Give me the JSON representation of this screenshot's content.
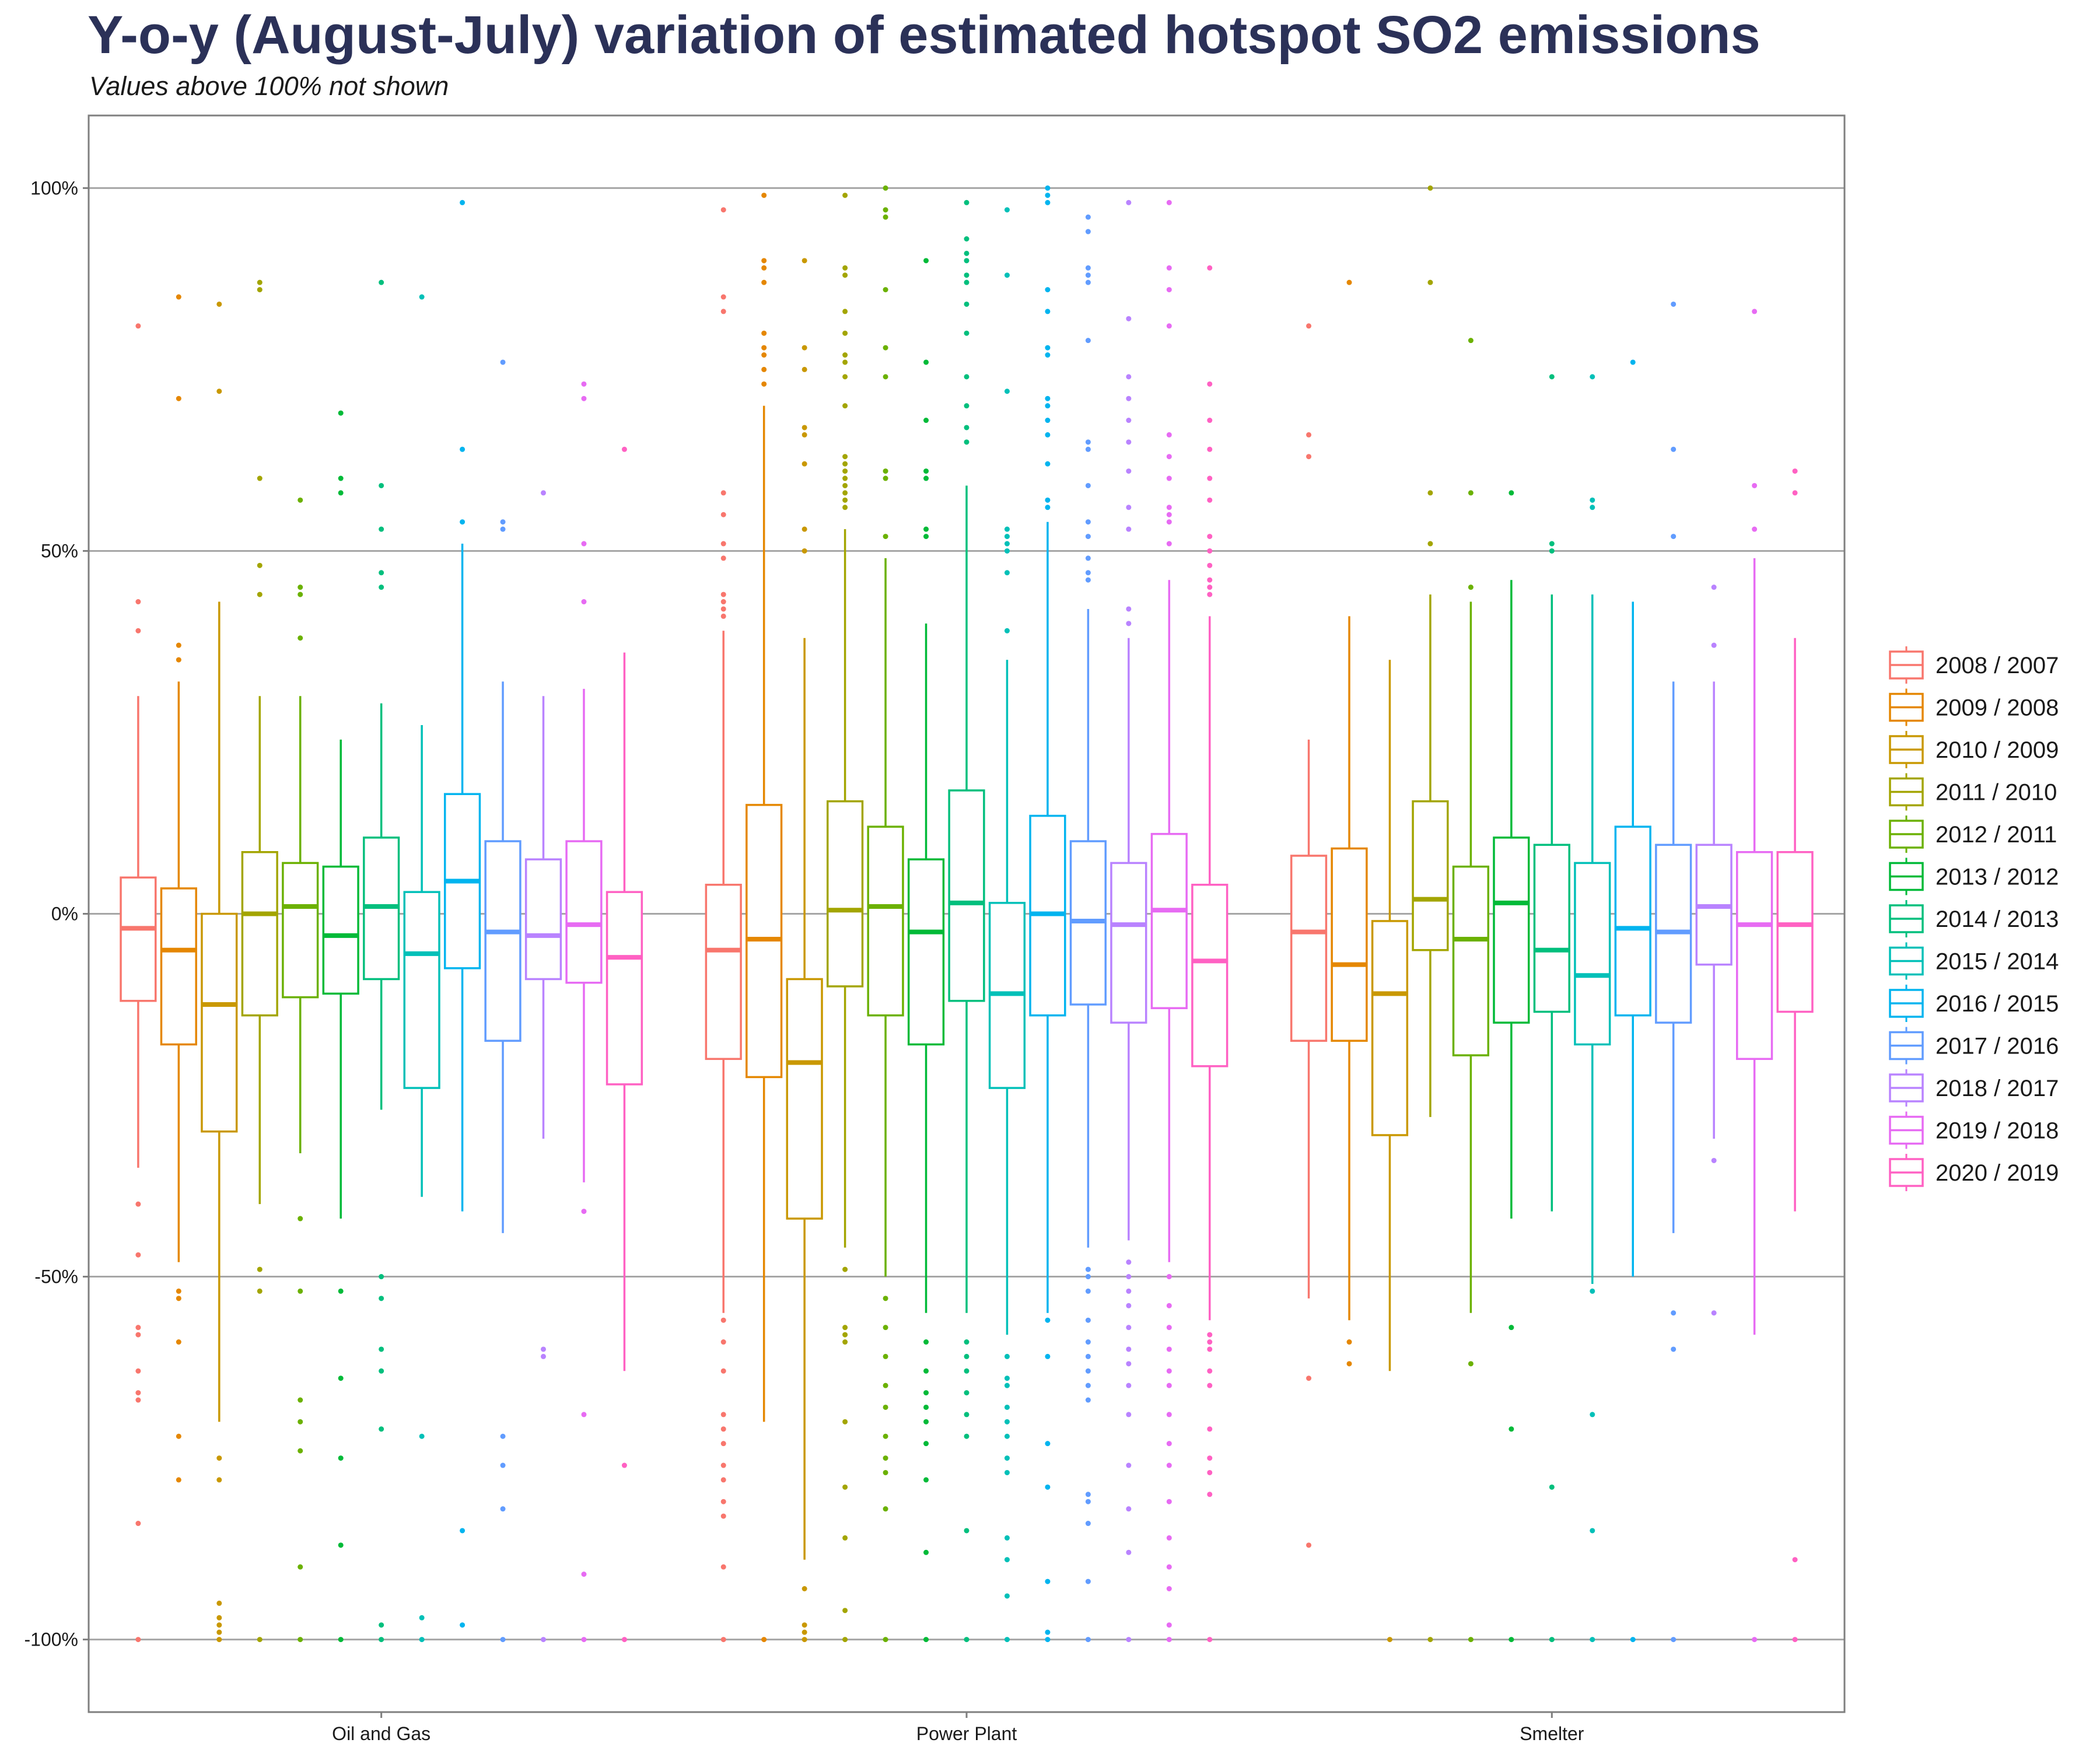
{
  "chart_data": {
    "type": "boxplot",
    "title": "Y-o-y (August-July) variation of estimated hotspot SO2 emissions",
    "subtitle": "Values above 100% not shown",
    "xlabel": "",
    "ylabel": "",
    "categories": [
      "Oil and Gas",
      "Power Plant",
      "Smelter"
    ],
    "y_ticks": [
      100,
      50,
      0,
      -50,
      -100
    ],
    "y_tick_labels": [
      "100%",
      "50%",
      "0%",
      "-50%",
      "-100%"
    ],
    "ylim": [
      -110,
      110
    ],
    "grid": "horizontal major lines",
    "legend_position": "right",
    "series": [
      {
        "name": "2008 / 2007",
        "color": "#F8766D",
        "boxes": [
          {
            "q1": -12,
            "median": -2,
            "q3": 5,
            "wlo": -35,
            "whi": 30,
            "outliers": [
              81,
              43,
              39,
              -40,
              -47,
              -57,
              -58,
              -63,
              -66,
              -67,
              -84,
              -100
            ]
          },
          {
            "q1": -20,
            "median": -5,
            "q3": 4,
            "wlo": -55,
            "whi": 39,
            "outliers": [
              97,
              85,
              83,
              58,
              55,
              51,
              49,
              44,
              43,
              42,
              41,
              -56,
              -59,
              -63,
              -69,
              -71,
              -73,
              -76,
              -78,
              -81,
              -83,
              -90,
              -100
            ]
          },
          {
            "q1": -17.5,
            "median": -2.5,
            "q3": 8,
            "wlo": -53,
            "whi": 24,
            "outliers": [
              81,
              66,
              63,
              -64,
              -87
            ]
          }
        ]
      },
      {
        "name": "2009 / 2008",
        "color": "#E58700",
        "boxes": [
          {
            "q1": -18,
            "median": -5,
            "q3": 3.5,
            "wlo": -48,
            "whi": 32,
            "outliers": [
              85,
              71,
              37,
              35,
              -52,
              -53,
              -59,
              -72,
              -78
            ]
          },
          {
            "q1": -22.5,
            "median": -3.5,
            "q3": 15,
            "wlo": -70,
            "whi": 70,
            "outliers": [
              99,
              90,
              89,
              87,
              80,
              78,
              77,
              75,
              73,
              -100
            ]
          },
          {
            "q1": -17.5,
            "median": -7,
            "q3": 9,
            "wlo": -56,
            "whi": 41,
            "outliers": [
              87,
              -59,
              -62
            ]
          }
        ]
      },
      {
        "name": "2010 / 2009",
        "color": "#C99800",
        "boxes": [
          {
            "q1": -30,
            "median": -12.5,
            "q3": 0,
            "wlo": -70,
            "whi": 43,
            "outliers": [
              84,
              72,
              -75,
              -78,
              -95,
              -97,
              -98,
              -99,
              -100
            ]
          },
          {
            "q1": -42,
            "median": -20.5,
            "q3": -9,
            "wlo": -89,
            "whi": 38,
            "outliers": [
              90,
              78,
              75,
              67,
              66,
              62,
              53,
              50,
              -93,
              -98,
              -99,
              -100
            ]
          },
          {
            "q1": -30.5,
            "median": -11,
            "q3": -1,
            "wlo": -63,
            "whi": 35,
            "outliers": [
              -100
            ]
          }
        ]
      },
      {
        "name": "2011 / 2010",
        "color": "#A3A500",
        "boxes": [
          {
            "q1": -14,
            "median": 0,
            "q3": 8.5,
            "wlo": -40,
            "whi": 30,
            "outliers": [
              87,
              86,
              60,
              48,
              44,
              -49,
              -52,
              -100
            ]
          },
          {
            "q1": -10,
            "median": 0.5,
            "q3": 15.5,
            "wlo": -46,
            "whi": 53,
            "outliers": [
              99,
              89,
              88,
              83,
              80,
              77,
              76,
              74,
              70,
              63,
              62,
              61,
              60,
              59,
              58,
              57,
              56,
              -49,
              -57,
              -58,
              -59,
              -70,
              -79,
              -86,
              -96,
              -100
            ]
          },
          {
            "q1": -5,
            "median": 2,
            "q3": 15.5,
            "wlo": -28,
            "whi": 44,
            "outliers": [
              100,
              87,
              58,
              51,
              -100
            ]
          }
        ]
      },
      {
        "name": "2012 / 2011",
        "color": "#6BB100",
        "boxes": [
          {
            "q1": -11.5,
            "median": 1,
            "q3": 7,
            "wlo": -33,
            "whi": 30,
            "outliers": [
              57,
              45,
              44,
              38,
              -42,
              -52,
              -67,
              -70,
              -74,
              -90,
              -100
            ]
          },
          {
            "q1": -14,
            "median": 1,
            "q3": 12,
            "wlo": -50,
            "whi": 49,
            "outliers": [
              100,
              97,
              96,
              86,
              78,
              74,
              61,
              60,
              52,
              -53,
              -57,
              -61,
              -65,
              -68,
              -72,
              -75,
              -77,
              -82,
              -100
            ]
          },
          {
            "q1": -19.5,
            "median": -3.5,
            "q3": 6.5,
            "wlo": -55,
            "whi": 43,
            "outliers": [
              79,
              58,
              45,
              -62,
              -100
            ]
          }
        ]
      },
      {
        "name": "2013 / 2012",
        "color": "#00BA38",
        "boxes": [
          {
            "q1": -11,
            "median": -3,
            "q3": 6.5,
            "wlo": -42,
            "whi": 24,
            "outliers": [
              69,
              60,
              58,
              -52,
              -64,
              -75,
              -87,
              -100
            ]
          },
          {
            "q1": -18,
            "median": -2.5,
            "q3": 7.5,
            "wlo": -55,
            "whi": 40,
            "outliers": [
              90,
              76,
              68,
              61,
              60,
              53,
              52,
              -59,
              -63,
              -66,
              -68,
              -70,
              -73,
              -78,
              -88,
              -100
            ]
          },
          {
            "q1": -15,
            "median": 1.5,
            "q3": 10.5,
            "wlo": -42,
            "whi": 46,
            "outliers": [
              58,
              -57,
              -71,
              -100
            ]
          }
        ]
      },
      {
        "name": "2014 / 2013",
        "color": "#00BF7D",
        "boxes": [
          {
            "q1": -9,
            "median": 1,
            "q3": 10.5,
            "wlo": -27,
            "whi": 29,
            "outliers": [
              87,
              59,
              53,
              47,
              45,
              -50,
              -53,
              -60,
              -63,
              -71,
              -98,
              -100
            ]
          },
          {
            "q1": -12,
            "median": 1.5,
            "q3": 17,
            "wlo": -55,
            "whi": 59,
            "outliers": [
              98,
              93,
              91,
              90,
              88,
              87,
              84,
              80,
              74,
              70,
              67,
              65,
              -59,
              -61,
              -63,
              -66,
              -69,
              -72,
              -85,
              -100
            ]
          },
          {
            "q1": -13.5,
            "median": -5,
            "q3": 9.5,
            "wlo": -41,
            "whi": 44,
            "outliers": [
              74,
              51,
              50,
              -79,
              -100
            ]
          }
        ]
      },
      {
        "name": "2015 / 2014",
        "color": "#00C0B8",
        "boxes": [
          {
            "q1": -24,
            "median": -5.5,
            "q3": 3,
            "wlo": -39,
            "whi": 26,
            "outliers": [
              85,
              -72,
              -97,
              -100
            ]
          },
          {
            "q1": -24,
            "median": -11,
            "q3": 1.5,
            "wlo": -58,
            "whi": 35,
            "outliers": [
              97,
              88,
              72,
              53,
              52,
              51,
              50,
              47,
              39,
              -61,
              -64,
              -65,
              -68,
              -70,
              -72,
              -75,
              -77,
              -86,
              -89,
              -94,
              -100
            ]
          },
          {
            "q1": -18,
            "median": -8.5,
            "q3": 7,
            "wlo": -51,
            "whi": 44,
            "outliers": [
              74,
              57,
              56,
              -52,
              -69,
              -85,
              -100
            ]
          }
        ]
      },
      {
        "name": "2016 / 2015",
        "color": "#00B4EF",
        "boxes": [
          {
            "q1": -7.5,
            "median": 4.5,
            "q3": 16.5,
            "wlo": -41,
            "whi": 51,
            "outliers": [
              98,
              64,
              54,
              -85,
              -98
            ]
          },
          {
            "q1": -14,
            "median": 0,
            "q3": 13.5,
            "wlo": -55,
            "whi": 54,
            "outliers": [
              100,
              99,
              98,
              86,
              83,
              78,
              77,
              71,
              70,
              68,
              66,
              62,
              57,
              56,
              -56,
              -61,
              -73,
              -79,
              -92,
              -99,
              -100
            ]
          },
          {
            "q1": -14,
            "median": -2,
            "q3": 12,
            "wlo": -50,
            "whi": 43,
            "outliers": [
              76,
              -100
            ]
          }
        ]
      },
      {
        "name": "2017 / 2016",
        "color": "#619CFF",
        "boxes": [
          {
            "q1": -17.5,
            "median": -2.5,
            "q3": 10,
            "wlo": -44,
            "whi": 32,
            "outliers": [
              76,
              54,
              53,
              -72,
              -76,
              -82,
              -100
            ]
          },
          {
            "q1": -12.5,
            "median": -1,
            "q3": 10,
            "wlo": -46,
            "whi": 42,
            "outliers": [
              96,
              94,
              89,
              88,
              87,
              79,
              65,
              64,
              59,
              54,
              52,
              49,
              47,
              46,
              -49,
              -50,
              -52,
              -56,
              -59,
              -61,
              -63,
              -65,
              -67,
              -80,
              -81,
              -84,
              -92,
              -100
            ]
          },
          {
            "q1": -15,
            "median": -2.5,
            "q3": 9.5,
            "wlo": -44,
            "whi": 32,
            "outliers": [
              84,
              64,
              52,
              -55,
              -60,
              -100
            ]
          }
        ]
      },
      {
        "name": "2018 / 2017",
        "color": "#B983FF",
        "boxes": [
          {
            "q1": -9,
            "median": -3,
            "q3": 7.5,
            "wlo": -31,
            "whi": 30,
            "outliers": [
              58,
              -60,
              -61,
              -100
            ]
          },
          {
            "q1": -15,
            "median": -1.5,
            "q3": 7,
            "wlo": -45,
            "whi": 38,
            "outliers": [
              98,
              82,
              74,
              71,
              68,
              65,
              61,
              56,
              53,
              42,
              40,
              -48,
              -50,
              -52,
              -54,
              -57,
              -60,
              -62,
              -65,
              -69,
              -76,
              -82,
              -88,
              -100
            ]
          },
          {
            "q1": -7,
            "median": 1,
            "q3": 9.5,
            "wlo": -31,
            "whi": 32,
            "outliers": [
              45,
              37,
              -34,
              -55
            ]
          }
        ]
      },
      {
        "name": "2019 / 2018",
        "color": "#E76BF3",
        "boxes": [
          {
            "q1": -9.5,
            "median": -1.5,
            "q3": 10,
            "wlo": -37,
            "whi": 31,
            "outliers": [
              73,
              71,
              51,
              43,
              -41,
              -69,
              -91,
              -100
            ]
          },
          {
            "q1": -13,
            "median": 0.5,
            "q3": 11,
            "wlo": -48,
            "whi": 46,
            "outliers": [
              98,
              89,
              86,
              81,
              66,
              63,
              60,
              56,
              55,
              54,
              51,
              -50,
              -54,
              -57,
              -60,
              -63,
              -65,
              -69,
              -73,
              -76,
              -81,
              -86,
              -90,
              -93,
              -98,
              -100
            ]
          },
          {
            "q1": -20,
            "median": -1.5,
            "q3": 8.5,
            "wlo": -58,
            "whi": 49,
            "outliers": [
              83,
              59,
              53,
              -100
            ]
          }
        ]
      },
      {
        "name": "2020 / 2019",
        "color": "#FF61C3",
        "boxes": [
          {
            "q1": -23.5,
            "median": -6,
            "q3": 3,
            "wlo": -63,
            "whi": 36,
            "outliers": [
              64,
              -76,
              -100
            ]
          },
          {
            "q1": -21,
            "median": -6.5,
            "q3": 4,
            "wlo": -56,
            "whi": 41,
            "outliers": [
              89,
              73,
              68,
              64,
              60,
              57,
              52,
              50,
              48,
              46,
              45,
              44,
              -58,
              -59,
              -60,
              -63,
              -65,
              -71,
              -75,
              -77,
              -80,
              -100
            ]
          },
          {
            "q1": -13.5,
            "median": -1.5,
            "q3": 8.5,
            "wlo": -41,
            "whi": 38,
            "outliers": [
              61,
              58,
              -89,
              -100
            ]
          }
        ]
      }
    ]
  }
}
